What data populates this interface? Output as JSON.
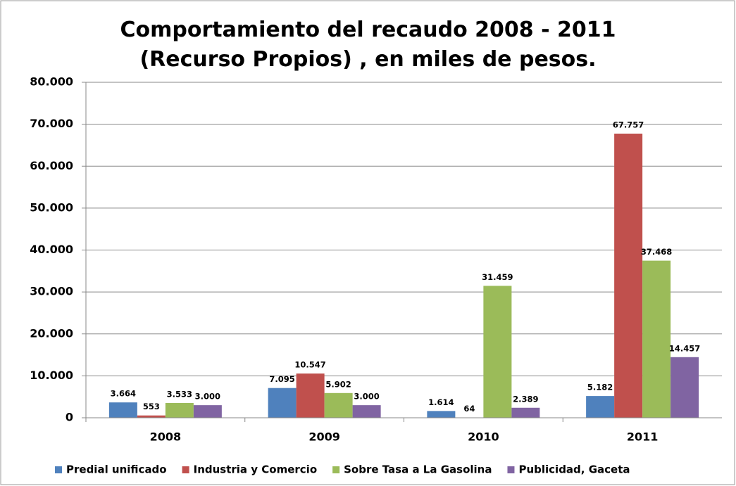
{
  "chart_data": {
    "type": "bar",
    "title": "Comportamiento del recaudo 2008 - 2011 (Recurso Propios) , en miles de pesos.",
    "categories": [
      "2008",
      "2009",
      "2010",
      "2011"
    ],
    "series": [
      {
        "name": "Predial unificado",
        "color": "#4f81bd",
        "values": [
          3664,
          7095,
          1614,
          5182
        ],
        "value_labels": [
          "3.664",
          "7.095",
          "1.614",
          "5.182"
        ]
      },
      {
        "name": "Industria y Comercio",
        "color": "#c0504d",
        "values": [
          553,
          10547,
          64,
          67757
        ],
        "value_labels": [
          "553",
          "10.547",
          "64",
          "67.757"
        ]
      },
      {
        "name": "Sobre Tasa a La Gasolina",
        "color": "#9bbb59",
        "values": [
          3533,
          5902,
          31459,
          37468
        ],
        "value_labels": [
          "3.533",
          "5.902",
          "31.459",
          "37.468"
        ]
      },
      {
        "name": "Publicidad, Gaceta",
        "color": "#8064a2",
        "values": [
          3000,
          3000,
          2389,
          14457
        ],
        "value_labels": [
          "3.000",
          "3.000",
          "2.389",
          "14.457"
        ]
      }
    ],
    "ylim": [
      0,
      80000
    ],
    "yticks": [
      0,
      {
        "value": 10000,
        "label": "10.000"
      },
      {
        "value": 20000,
        "label": "20.000"
      },
      {
        "value": 30000,
        "label": "30.000"
      },
      {
        "value": 40000,
        "label": "40.000"
      },
      {
        "value": 50000,
        "label": "50.000"
      },
      {
        "value": 60000,
        "label": "60.000"
      },
      {
        "value": 70000,
        "label": "70.000"
      },
      {
        "value": 80000,
        "label": "80.000"
      }
    ],
    "grid": true,
    "legend": "bottom"
  }
}
